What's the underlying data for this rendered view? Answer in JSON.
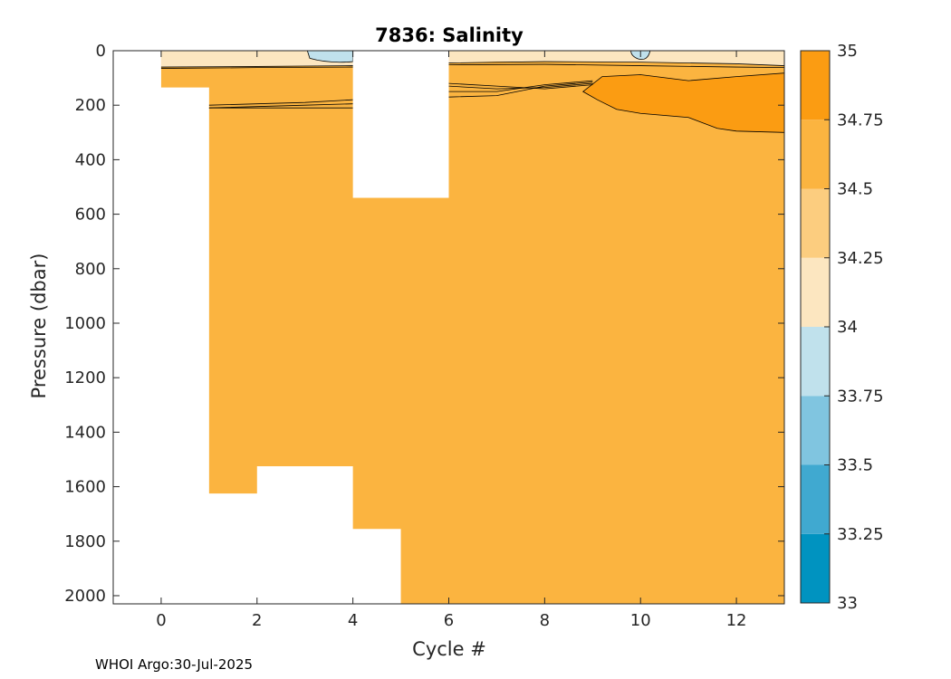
{
  "chart_data": {
    "type": "heatmap",
    "title": "7836:  Salinity",
    "xlabel": "Cycle #",
    "ylabel": "Pressure (dbar)",
    "xlim": [
      -1,
      13
    ],
    "ylim": [
      0,
      2030
    ],
    "y_reversed": true,
    "x_ticks": [
      0,
      2,
      4,
      6,
      8,
      10,
      12
    ],
    "y_ticks": [
      0,
      200,
      400,
      600,
      800,
      1000,
      1200,
      1400,
      1600,
      1800,
      2000
    ],
    "colorbar": {
      "levels": [
        33,
        33.25,
        33.5,
        33.75,
        34,
        34.25,
        34.5,
        34.75,
        35
      ],
      "tick_labels": [
        "33",
        "33.25",
        "33.5",
        "33.75",
        "34",
        "34.25",
        "34.5",
        "34.75",
        "35"
      ],
      "colors": [
        "#0093c0",
        "#40a9d0",
        "#80c5e0",
        "#c0e1ec",
        "#fce6c0",
        "#fccd7f",
        "#fbb440",
        "#fb9c12"
      ]
    },
    "profiles": [
      {
        "cycle": 0,
        "max_pressure": 135
      },
      {
        "cycle": 1,
        "max_pressure": 1625
      },
      {
        "cycle": 2,
        "max_pressure": 1525
      },
      {
        "cycle": 3,
        "max_pressure": 1525
      },
      {
        "cycle": 4,
        "max_pressure": 1755
      },
      {
        "cycle": 5,
        "max_pressure": 2030
      },
      {
        "cycle": 6,
        "max_pressure": 2030
      },
      {
        "cycle": 7,
        "max_pressure": 2030
      },
      {
        "cycle": 8,
        "max_pressure": 2030
      },
      {
        "cycle": 9,
        "max_pressure": 2030
      },
      {
        "cycle": 10,
        "max_pressure": 2030
      },
      {
        "cycle": 11,
        "max_pressure": 2030
      },
      {
        "cycle": 12,
        "max_pressure": 2030
      },
      {
        "cycle": 13,
        "max_pressure": 2030
      }
    ],
    "data_gap": {
      "cycles": [
        4,
        6
      ],
      "pressure_range": [
        0,
        540
      ]
    },
    "regions": [
      {
        "salinity_band": "34.5-34.75",
        "description": "bulk water column"
      },
      {
        "salinity_band": "34.0-34.25",
        "depth_range": [
          0,
          60
        ]
      },
      {
        "salinity_band": "33.75-34.0",
        "depth_range": [
          0,
          40
        ],
        "cycles": [
          3,
          4
        ]
      },
      {
        "salinity_band": "33.75-34.0",
        "depth_range": [
          0,
          35
        ],
        "cycles": [
          9.8,
          10.2
        ]
      },
      {
        "salinity_band": "34.75-35.0",
        "depth_range": [
          80,
          300
        ],
        "cycles": [
          9,
          13
        ]
      }
    ]
  },
  "footer_text": "WHOI Argo:30-Jul-2025"
}
